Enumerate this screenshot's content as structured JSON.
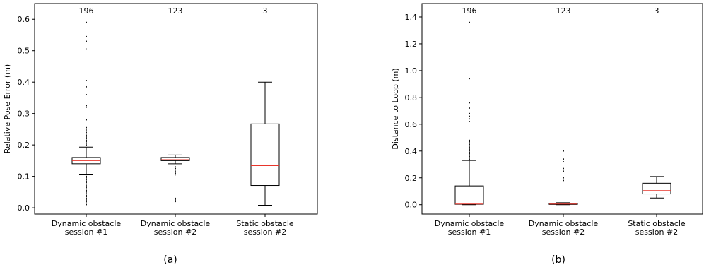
{
  "chart_data": [
    {
      "type": "box",
      "subplot_label": "(a)",
      "ylabel": "Relative Pose Error (m)",
      "ylim": [
        -0.02,
        0.65
      ],
      "yticks": [
        0.0,
        0.1,
        0.2,
        0.3,
        0.4,
        0.5,
        0.6
      ],
      "ytick_labels": [
        "0.0",
        "0.1",
        "0.2",
        "0.3",
        "0.4",
        "0.5",
        "0.6"
      ],
      "categories": [
        [
          "Dynamic obstacle",
          "session #1"
        ],
        [
          "Dynamic obstacle",
          "session #2"
        ],
        [
          "Static obstacle",
          "session #2"
        ]
      ],
      "counts": [
        "196",
        "123",
        "3"
      ],
      "boxes": [
        {
          "whisker_low": 0.107,
          "q1": 0.14,
          "median": 0.15,
          "q3": 0.16,
          "whisker_high": 0.193,
          "outliers": [
            0.59,
            0.545,
            0.53,
            0.505,
            0.405,
            0.385,
            0.36,
            0.325,
            0.32,
            0.28,
            0.255,
            0.25,
            0.245,
            0.24,
            0.235,
            0.23,
            0.225,
            0.22,
            0.215,
            0.21,
            0.205,
            0.2,
            0.1,
            0.095,
            0.09,
            0.085,
            0.08,
            0.075,
            0.07,
            0.065,
            0.06,
            0.055,
            0.05,
            0.045,
            0.04,
            0.035,
            0.03,
            0.025,
            0.02,
            0.015,
            0.01
          ]
        },
        {
          "whisker_low": 0.14,
          "q1": 0.15,
          "median": 0.153,
          "q3": 0.16,
          "whisker_high": 0.168,
          "outliers": [
            0.13,
            0.125,
            0.12,
            0.115,
            0.11,
            0.105,
            0.03,
            0.025,
            0.02
          ]
        },
        {
          "whisker_low": 0.008,
          "q1": 0.071,
          "median": 0.134,
          "q3": 0.267,
          "whisker_high": 0.4,
          "outliers": []
        }
      ]
    },
    {
      "type": "box",
      "subplot_label": "(b)",
      "ylabel": "Distance to Loop (m)",
      "ylim": [
        -0.07,
        1.5
      ],
      "yticks": [
        0.0,
        0.2,
        0.4,
        0.6,
        0.8,
        1.0,
        1.2,
        1.4
      ],
      "ytick_labels": [
        "0.0",
        "0.2",
        "0.4",
        "0.6",
        "0.8",
        "1.0",
        "1.2",
        "1.4"
      ],
      "categories": [
        [
          "Dynamic obstacle",
          "session #1"
        ],
        [
          "Dynamic obstacle",
          "session #2"
        ],
        [
          "Static obstacle",
          "session #2"
        ]
      ],
      "counts": [
        "196",
        "123",
        "3"
      ],
      "boxes": [
        {
          "whisker_low": 0.0,
          "q1": 0.003,
          "median": 0.005,
          "q3": 0.14,
          "whisker_high": 0.33,
          "outliers": [
            1.36,
            0.94,
            0.76,
            0.72,
            0.68,
            0.66,
            0.64,
            0.62,
            0.48,
            0.47,
            0.46,
            0.45,
            0.44,
            0.43,
            0.42,
            0.41,
            0.4,
            0.39,
            0.38,
            0.37,
            0.36,
            0.35,
            0.34
          ]
        },
        {
          "whisker_low": 0.0,
          "q1": 0.002,
          "median": 0.005,
          "q3": 0.01,
          "whisker_high": 0.015,
          "outliers": [
            0.4,
            0.34,
            0.32,
            0.27,
            0.25,
            0.2,
            0.18
          ]
        },
        {
          "whisker_low": 0.05,
          "q1": 0.08,
          "median": 0.105,
          "q3": 0.16,
          "whisker_high": 0.21,
          "outliers": []
        }
      ]
    }
  ]
}
